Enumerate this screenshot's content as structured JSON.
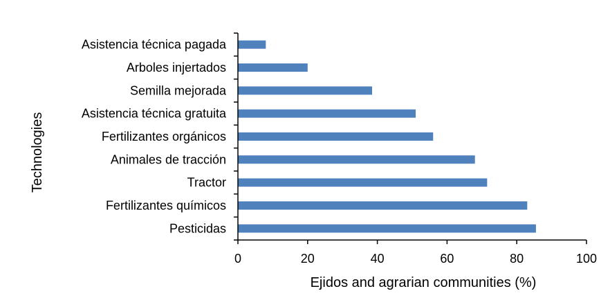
{
  "chart_data": {
    "type": "bar",
    "orientation": "horizontal",
    "categories": [
      "Asistencia técnica pagada",
      "Arboles injertados",
      "Semilla mejorada",
      "Asistencia técnica gratuita",
      "Fertilizantes orgánicos",
      "Animales de tracción ",
      "Tractor",
      "Fertilizantes químicos",
      "Pesticidas"
    ],
    "values": [
      8,
      20,
      38.5,
      51,
      56,
      68,
      71.5,
      83,
      85.5
    ],
    "xlabel": "Ejidos and agrarian communities (%)",
    "ylabel": "Technologies",
    "xlim": [
      0,
      100
    ],
    "xticks": [
      "0",
      "20",
      "40",
      "60",
      "80",
      "100"
    ],
    "bar_color": "#4f81bd",
    "grid": false,
    "legend": "none"
  }
}
